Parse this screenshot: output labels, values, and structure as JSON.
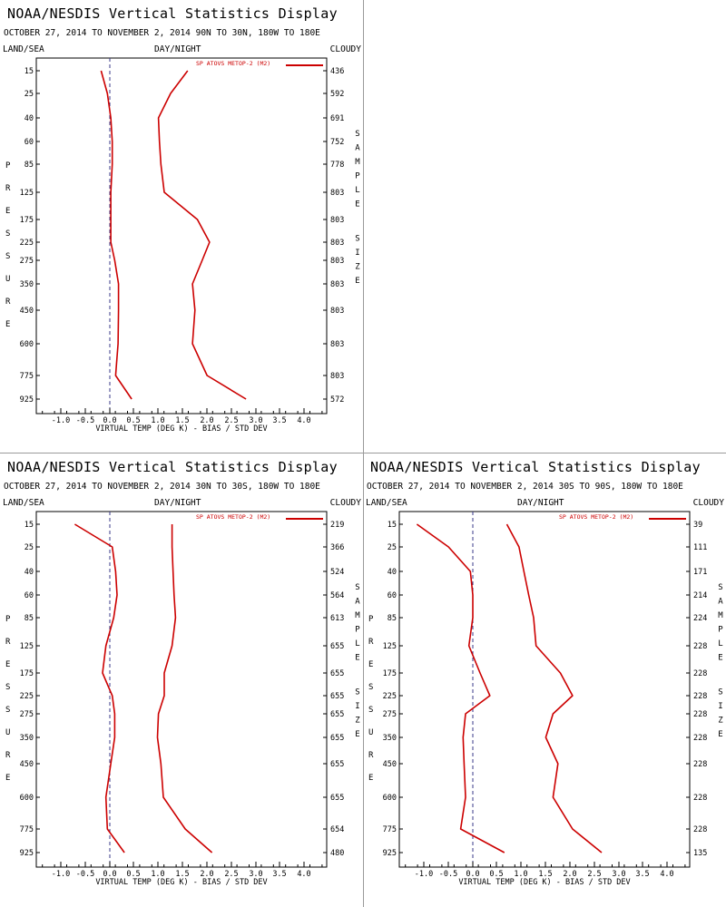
{
  "colors": {
    "line": "#cc0000",
    "frame": "#000000",
    "zero_line": "#3a3a8a",
    "divider": "#9a9a9a"
  },
  "chart_data": [
    {
      "type": "line",
      "title": "NOAA/NESDIS Vertical Statistics Display",
      "subtitle": "OCTOBER 27, 2014 TO NOVEMBER 2, 2014  90N TO 30N, 180W TO 180E",
      "corner_left": "LAND/SEA",
      "corner_center": "DAY/NIGHT",
      "corner_right": "CLOUDY",
      "xlabel": "VIRTUAL TEMP (DEG K) - BIAS / STD DEV",
      "ylabel_left": "PRESSURE",
      "ylabel_right": "SAMPLE SIZE",
      "legend": "SP ATOVS METOP-2 (M2)",
      "legend_position": "top-right",
      "xlim": [
        -1.5,
        4.5
      ],
      "xticks": [
        "-1.0",
        "-0.5",
        "0.0",
        "0.5",
        "1.0",
        "1.5",
        "2.0",
        "2.5",
        "3.0",
        "3.5",
        "4.0"
      ],
      "pressure_levels": [
        "15",
        "25",
        "40",
        "60",
        "85",
        "125",
        "175",
        "225",
        "275",
        "350",
        "450",
        "600",
        "775",
        "925"
      ],
      "sample_size": [
        "436",
        "592",
        "691",
        "752",
        "778",
        "803",
        "803",
        "803",
        "803",
        "803",
        "803",
        "803",
        "803",
        "572"
      ],
      "series": [
        {
          "values": [
            -0.18,
            -0.05,
            0.02,
            0.05,
            0.05,
            0.02,
            0.02,
            0.02,
            0.1,
            0.18,
            0.18,
            0.17,
            0.12,
            0.45
          ]
        },
        {
          "values": [
            1.6,
            1.25,
            1.0,
            1.02,
            1.05,
            1.12,
            1.8,
            2.05,
            1.9,
            1.7,
            1.75,
            1.7,
            2.0,
            2.8
          ]
        }
      ]
    },
    {
      "type": "line",
      "title": "NOAA/NESDIS Vertical Statistics Display",
      "subtitle": "OCTOBER 27, 2014 TO NOVEMBER 2, 2014  30N TO 30S, 180W TO 180E",
      "corner_left": "LAND/SEA",
      "corner_center": "DAY/NIGHT",
      "corner_right": "CLOUDY",
      "xlabel": "VIRTUAL TEMP (DEG K) - BIAS / STD DEV",
      "ylabel_left": "PRESSURE",
      "ylabel_right": "SAMPLE SIZE",
      "legend": "SP ATOVS METOP-2 (M2)",
      "legend_position": "top-right",
      "xlim": [
        -1.5,
        4.5
      ],
      "xticks": [
        "-1.0",
        "-0.5",
        "0.0",
        "0.5",
        "1.0",
        "1.5",
        "2.0",
        "2.5",
        "3.0",
        "3.5",
        "4.0"
      ],
      "pressure_levels": [
        "15",
        "25",
        "40",
        "60",
        "85",
        "125",
        "175",
        "225",
        "275",
        "350",
        "450",
        "600",
        "775",
        "925"
      ],
      "sample_size": [
        "219",
        "366",
        "524",
        "564",
        "613",
        "655",
        "655",
        "655",
        "655",
        "655",
        "655",
        "655",
        "654",
        "480"
      ],
      "series": [
        {
          "values": [
            -0.72,
            0.05,
            0.12,
            0.15,
            0.08,
            -0.08,
            -0.15,
            0.05,
            0.1,
            0.1,
            0.02,
            -0.08,
            -0.05,
            0.3
          ]
        },
        {
          "values": [
            1.28,
            1.28,
            1.3,
            1.32,
            1.35,
            1.28,
            1.12,
            1.12,
            1.0,
            0.98,
            1.05,
            1.1,
            1.55,
            2.1
          ]
        }
      ]
    },
    {
      "type": "line",
      "title": "NOAA/NESDIS Vertical Statistics Display",
      "subtitle": "OCTOBER 27, 2014 TO NOVEMBER 2, 2014  30S TO 90S, 180W TO 180E",
      "corner_left": "LAND/SEA",
      "corner_center": "DAY/NIGHT",
      "corner_right": "CLOUDY",
      "xlabel": "VIRTUAL TEMP (DEG K) - BIAS / STD DEV",
      "ylabel_left": "PRESSURE",
      "ylabel_right": "SAMPLE SIZE",
      "legend": "SP ATOVS METOP-2 (M2)",
      "legend_position": "top-right",
      "xlim": [
        -1.5,
        4.5
      ],
      "xticks": [
        "-1.0",
        "-0.5",
        "0.0",
        "0.5",
        "1.0",
        "1.5",
        "2.0",
        "2.5",
        "3.0",
        "3.5",
        "4.0"
      ],
      "pressure_levels": [
        "15",
        "25",
        "40",
        "60",
        "85",
        "125",
        "175",
        "225",
        "275",
        "350",
        "450",
        "600",
        "775",
        "925"
      ],
      "sample_size": [
        "39",
        "111",
        "171",
        "214",
        "224",
        "228",
        "228",
        "228",
        "228",
        "228",
        "228",
        "228",
        "228",
        "135"
      ],
      "series": [
        {
          "values": [
            -1.15,
            -0.5,
            -0.05,
            0.0,
            0.0,
            -0.08,
            0.15,
            0.35,
            -0.15,
            -0.2,
            -0.18,
            -0.15,
            -0.25,
            0.65
          ]
        },
        {
          "values": [
            0.7,
            0.95,
            1.05,
            1.15,
            1.25,
            1.3,
            1.8,
            2.05,
            1.65,
            1.5,
            1.75,
            1.65,
            2.05,
            2.65
          ]
        }
      ]
    }
  ]
}
